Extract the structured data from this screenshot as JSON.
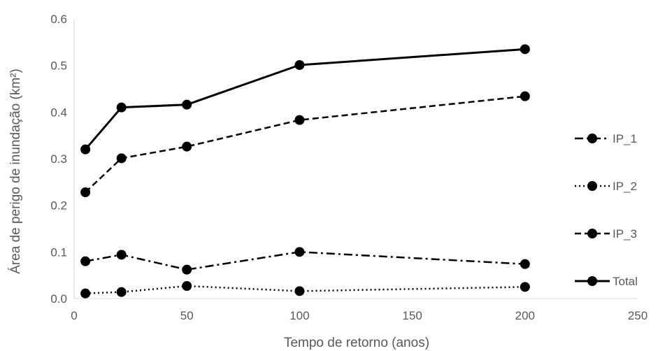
{
  "chart_data": {
    "type": "line",
    "xlabel": "Tempo de retorno (anos)",
    "ylabel": "Área de perigo de inundação (km²)",
    "xlim": [
      0,
      250
    ],
    "ylim": [
      0,
      0.6
    ],
    "xticks": [
      "0",
      "50",
      "100",
      "150",
      "200",
      "250"
    ],
    "yticks": [
      "0.0",
      "0.1",
      "0.2",
      "0.3",
      "0.4",
      "0.5",
      "0.6"
    ],
    "grid": false,
    "legend_position": "right",
    "series": [
      {
        "name": "IP_1",
        "dash": "dash-dot",
        "color": "#000000",
        "x": [
          5,
          21,
          50,
          100,
          200
        ],
        "y": [
          0.08,
          0.094,
          0.062,
          0.1,
          0.074
        ]
      },
      {
        "name": "IP_2",
        "dash": "dot",
        "color": "#000000",
        "x": [
          5,
          21,
          50,
          100,
          200
        ],
        "y": [
          0.011,
          0.014,
          0.027,
          0.016,
          0.025
        ]
      },
      {
        "name": "IP_3",
        "dash": "dash",
        "color": "#000000",
        "x": [
          5,
          21,
          50,
          100,
          200
        ],
        "y": [
          0.228,
          0.301,
          0.326,
          0.383,
          0.434
        ]
      },
      {
        "name": "Total",
        "dash": "solid",
        "color": "#000000",
        "x": [
          5,
          21,
          50,
          100,
          200
        ],
        "y": [
          0.32,
          0.41,
          0.416,
          0.501,
          0.535
        ]
      }
    ]
  }
}
